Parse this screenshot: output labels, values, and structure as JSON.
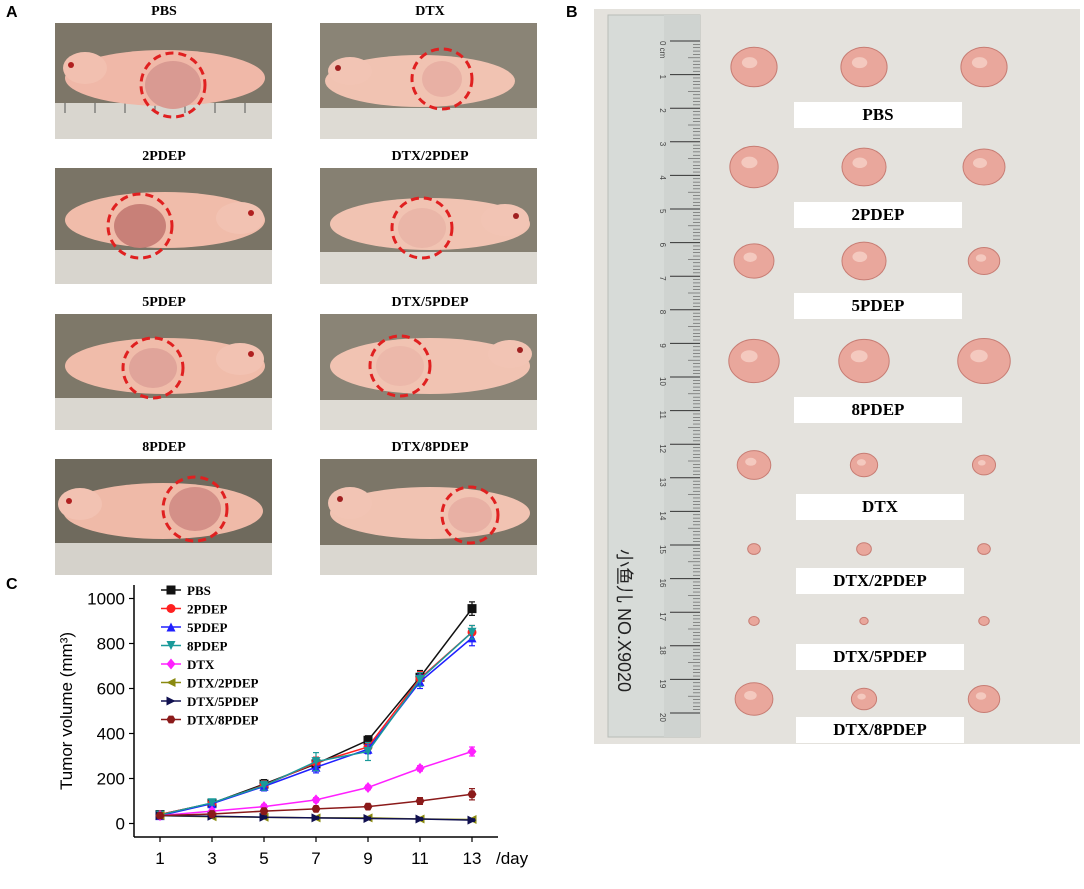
{
  "panels": {
    "a": "A",
    "b": "B",
    "c": "C"
  },
  "panel_a": {
    "mice": [
      {
        "label": "PBS"
      },
      {
        "label": "DTX"
      },
      {
        "label": "2PDEP"
      },
      {
        "label": "DTX/2PDEP"
      },
      {
        "label": "5PDEP"
      },
      {
        "label": "DTX/5PDEP"
      },
      {
        "label": "8PDEP"
      },
      {
        "label": "DTX/8PDEP"
      }
    ]
  },
  "panel_b": {
    "group_labels": [
      "PBS",
      "2PDEP",
      "5PDEP",
      "8PDEP",
      "DTX",
      "DTX/2PDEP",
      "DTX/5PDEP",
      "DTX/8PDEP"
    ],
    "ruler_ticks": [
      "0 cm",
      "1",
      "2",
      "3",
      "4",
      "5",
      "6",
      "7",
      "8",
      "9",
      "10",
      "11",
      "12",
      "13",
      "14",
      "15",
      "16",
      "17",
      "18",
      "19",
      "20"
    ],
    "ruler_brand": "小鱼儿 NO.X9020"
  },
  "chart_data": {
    "type": "line",
    "title": "",
    "xlabel": "/day",
    "ylabel": "Tumor volume (mm³)",
    "x": [
      1,
      3,
      5,
      7,
      9,
      11,
      13
    ],
    "xticks": [
      "1",
      "3",
      "5",
      "7",
      "9",
      "11",
      "13"
    ],
    "yticks": [
      "0",
      "200",
      "400",
      "600",
      "800",
      "1000"
    ],
    "ylim": [
      -60,
      1060
    ],
    "legend_position": "top-left",
    "series": [
      {
        "name": "PBS",
        "color": "#111111",
        "marker": "square",
        "values": [
          40,
          90,
          175,
          265,
          370,
          650,
          955
        ],
        "errors": [
          10,
          10,
          20,
          25,
          20,
          30,
          30
        ]
      },
      {
        "name": "2PDEP",
        "color": "#ff2020",
        "marker": "circle",
        "values": [
          40,
          90,
          170,
          270,
          340,
          645,
          850
        ],
        "errors": [
          10,
          10,
          20,
          25,
          20,
          30,
          30
        ]
      },
      {
        "name": "5PDEP",
        "color": "#2020ff",
        "marker": "triangle",
        "values": [
          35,
          88,
          165,
          250,
          330,
          630,
          825
        ],
        "errors": [
          10,
          10,
          20,
          25,
          20,
          30,
          35
        ]
      },
      {
        "name": "8PDEP",
        "color": "#1a9a9a",
        "marker": "triangle-down",
        "values": [
          38,
          92,
          168,
          275,
          320,
          640,
          850
        ],
        "errors": [
          10,
          10,
          20,
          40,
          40,
          30,
          30
        ]
      },
      {
        "name": "DTX",
        "color": "#ff20ff",
        "marker": "diamond",
        "values": [
          35,
          55,
          75,
          105,
          160,
          245,
          320
        ],
        "errors": [
          8,
          8,
          10,
          10,
          10,
          12,
          20
        ]
      },
      {
        "name": "DTX/2PDEP",
        "color": "#8a8a10",
        "marker": "triangle-left",
        "values": [
          35,
          30,
          28,
          25,
          25,
          20,
          18
        ],
        "errors": [
          8,
          6,
          6,
          6,
          6,
          6,
          6
        ]
      },
      {
        "name": "DTX/5PDEP",
        "color": "#101050",
        "marker": "triangle-right",
        "values": [
          35,
          32,
          28,
          25,
          22,
          20,
          15
        ],
        "errors": [
          8,
          6,
          6,
          6,
          6,
          6,
          6
        ]
      },
      {
        "name": "DTX/8PDEP",
        "color": "#8b1a1a",
        "marker": "hexagon",
        "values": [
          35,
          42,
          55,
          65,
          75,
          100,
          130
        ],
        "errors": [
          8,
          8,
          8,
          10,
          10,
          15,
          25
        ]
      }
    ]
  }
}
